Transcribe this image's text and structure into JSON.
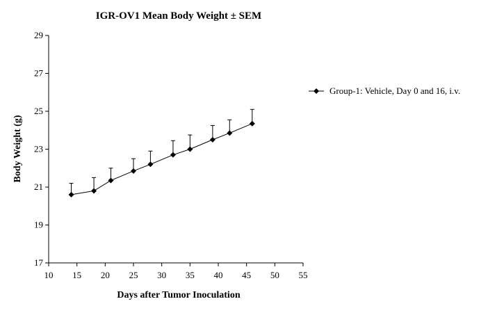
{
  "chart_data": {
    "type": "line",
    "title": "IGR-OV1 Mean Body Weight ± SEM",
    "xlabel": "Days after Tumor Inoculation",
    "ylabel": "Body Weight (g)",
    "xlim": [
      10,
      55
    ],
    "ylim": [
      17,
      29
    ],
    "x_ticks": [
      "10",
      "15",
      "20",
      "25",
      "30",
      "35",
      "40",
      "45",
      "50",
      "55"
    ],
    "y_ticks": [
      "17",
      "19",
      "21",
      "23",
      "25",
      "27",
      "29"
    ],
    "legend_position": "right",
    "grid": false,
    "series": [
      {
        "name": "Group-1: Vehicle, Day 0 and 16, i.v.",
        "color": "#000000",
        "marker": "diamond",
        "x": [
          14,
          18,
          21,
          25,
          28,
          32,
          35,
          39,
          42,
          46
        ],
        "y": [
          20.6,
          20.8,
          21.35,
          21.85,
          22.2,
          22.7,
          23.0,
          23.5,
          23.85,
          24.35
        ],
        "error": [
          0.6,
          0.7,
          0.65,
          0.65,
          0.7,
          0.75,
          0.75,
          0.75,
          0.7,
          0.75
        ]
      }
    ]
  }
}
